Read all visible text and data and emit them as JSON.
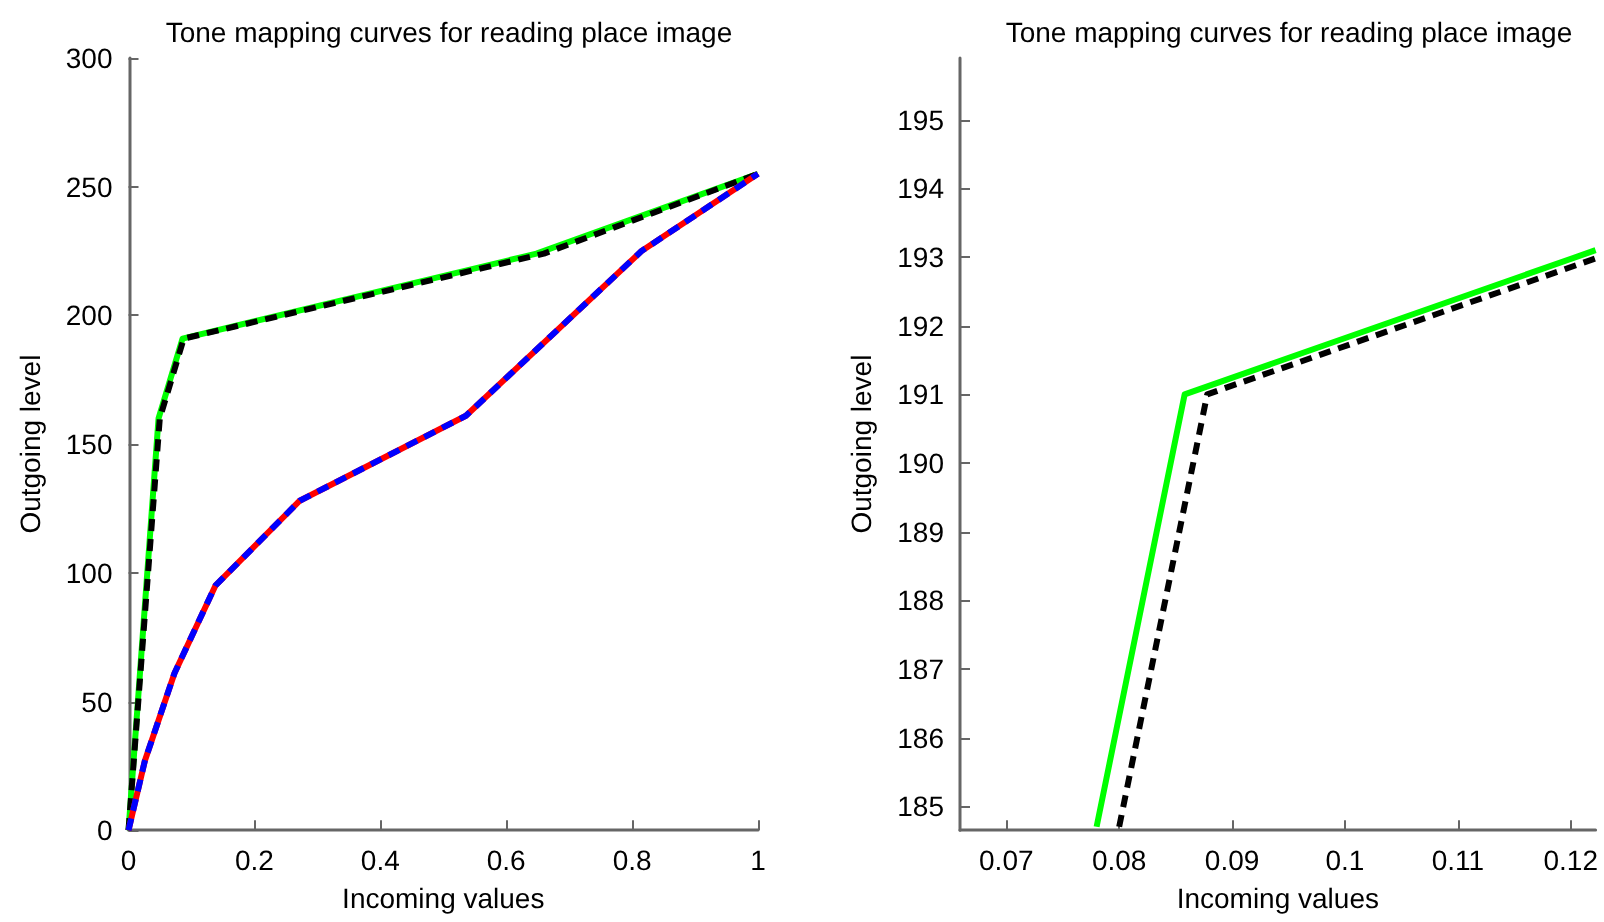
{
  "chart_data": [
    {
      "type": "line",
      "title": "Tone mapping curves for reading place image",
      "xlabel": "Incoming values",
      "ylabel": "Outgoing level",
      "xlim": [
        0,
        1
      ],
      "xticks": [
        0,
        0.2,
        0.4,
        0.6,
        0.8,
        1
      ],
      "ylim": [
        0,
        300
      ],
      "yticks": [
        0,
        50,
        100,
        150,
        200,
        250,
        300
      ],
      "grid": false,
      "marker": "none",
      "series": [
        {
          "color": "#00ff00",
          "line_style": "solid",
          "x": [
            0,
            0.0477,
            0.0858,
            0.648,
            1
          ],
          "values": [
            0,
            160,
            191,
            224,
            255
          ]
        },
        {
          "color": "#000000",
          "line_style": "dashed",
          "x": [
            0,
            0.0497,
            0.0878,
            0.66,
            1
          ],
          "values": [
            0,
            160,
            191,
            224,
            255
          ]
        },
        {
          "color": "#ff0000",
          "line_style": "solid",
          "x": [
            0,
            0.026,
            0.073,
            0.138,
            0.272,
            0.536,
            0.815,
            1
          ],
          "values": [
            0,
            27,
            61,
            95,
            128,
            161,
            225,
            255
          ]
        },
        {
          "color": "#0000ff",
          "line_style": "dashed",
          "x": [
            0,
            0.026,
            0.073,
            0.138,
            0.272,
            0.536,
            0.815,
            1
          ],
          "values": [
            0,
            27,
            61,
            95,
            128,
            161,
            225,
            255
          ]
        }
      ]
    },
    {
      "type": "line",
      "title": "Tone mapping curves for reading place image",
      "xlabel": "Incoming values",
      "ylabel": "Outgoing level",
      "xlim": [
        0.0659,
        0.1222
      ],
      "xticks": [
        0.07,
        0.08,
        0.09,
        0.1,
        0.11,
        0.12
      ],
      "ylim": [
        184.65,
        195.9
      ],
      "yticks": [
        185,
        186,
        187,
        188,
        189,
        190,
        191,
        192,
        193,
        194,
        195
      ],
      "grid": false,
      "marker": "none",
      "series": [
        {
          "color": "#00ff00",
          "line_style": "solid",
          "x": [
            0.078,
            0.0858,
            0.1222
          ],
          "values": [
            184.7,
            191,
            193.1
          ]
        },
        {
          "color": "#000000",
          "line_style": "dashed",
          "x": [
            0.08,
            0.0878,
            0.1222
          ],
          "values": [
            184.7,
            191,
            192.98
          ]
        }
      ]
    }
  ]
}
